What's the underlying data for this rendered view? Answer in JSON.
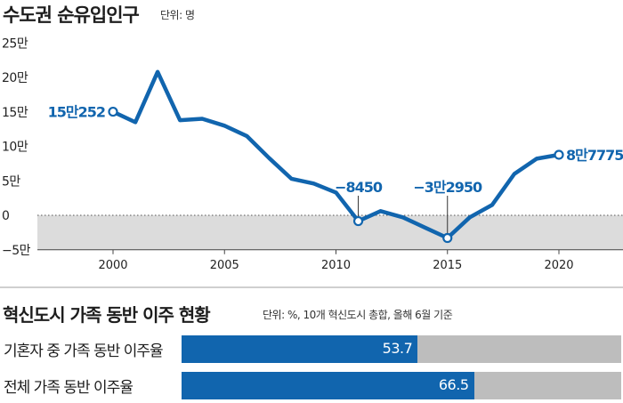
{
  "chart_data": [
    {
      "type": "line",
      "title": "수도권 순유입인구",
      "unit": "단위: 명",
      "yticks": [
        {
          "value": 250000,
          "label": "25만"
        },
        {
          "value": 200000,
          "label": "20만"
        },
        {
          "value": 150000,
          "label": "15만"
        },
        {
          "value": 100000,
          "label": "10만"
        },
        {
          "value": 50000,
          "label": "5만"
        },
        {
          "value": 0,
          "label": "0"
        },
        {
          "value": -50000,
          "label": "−5만"
        }
      ],
      "xticks": [
        2000,
        2005,
        2010,
        2015,
        2020
      ],
      "ylim": [
        -50000,
        250000
      ],
      "xlim": [
        1997,
        2023
      ],
      "negative_region_shaded": true,
      "line_color": "#1165ae",
      "series": [
        {
          "x": [
            2000,
            2001,
            2002,
            2003,
            2004,
            2005,
            2006,
            2007,
            2008,
            2009,
            2010,
            2011,
            2012,
            2013,
            2014,
            2015,
            2016,
            2017,
            2018,
            2019,
            2020
          ],
          "values": [
            150252,
            135000,
            208000,
            138000,
            140000,
            130000,
            115000,
            83000,
            53000,
            46000,
            33000,
            -8450,
            6000,
            -3000,
            -18000,
            -32950,
            -3000,
            15000,
            60000,
            82000,
            87775
          ]
        }
      ],
      "annotations": [
        {
          "x": 2000,
          "y": 150252,
          "label": "15만252",
          "pos": "left"
        },
        {
          "x": 2011,
          "y": -8450,
          "label": "−8450",
          "pos": "above"
        },
        {
          "x": 2015,
          "y": -32950,
          "label": "−3만2950",
          "pos": "above"
        },
        {
          "x": 2020,
          "y": 87775,
          "label": "8만7775",
          "pos": "right"
        }
      ]
    },
    {
      "type": "bar",
      "title": "혁신도시 가족 동반 이주 현황",
      "unit": "단위: %, 10개 혁신도시 총합, 올해 6월 기준",
      "categories": [
        "기혼자 중 가족 동반 이주율",
        "전체 가족 동반 이주율"
      ],
      "values": [
        53.7,
        66.5
      ],
      "value_labels": [
        "53.7",
        "66.5"
      ],
      "xlim": [
        0,
        100
      ],
      "bar_color": "#1165ae",
      "track_color": "#bdbdbd"
    }
  ]
}
